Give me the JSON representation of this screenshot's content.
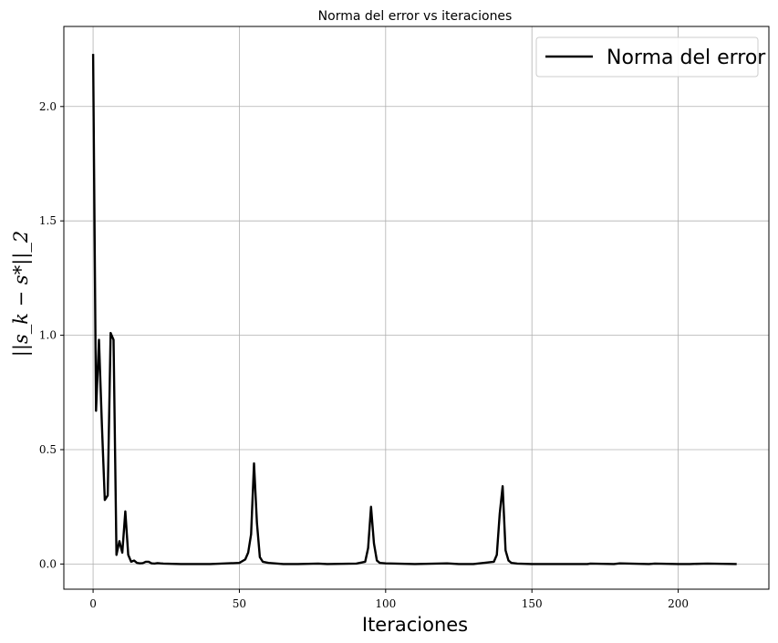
{
  "chart_data": {
    "type": "line",
    "title": "Norma del error vs iteraciones",
    "xlabel": "Iteraciones",
    "ylabel": "||s_k − s*||_2",
    "xlim": [
      -10,
      231
    ],
    "ylim": [
      -0.11,
      2.35
    ],
    "xticks": [
      0,
      50,
      100,
      150,
      200
    ],
    "yticks": [
      0.0,
      0.5,
      1.0,
      1.5,
      2.0
    ],
    "xtick_labels": [
      "0",
      "50",
      "100",
      "150",
      "200"
    ],
    "ytick_labels": [
      "0.0",
      "0.5",
      "1.0",
      "1.5",
      "2.0"
    ],
    "grid": true,
    "legend_position": "top-right",
    "colors": {
      "line": "#000000",
      "grid": "#b0b0b0"
    },
    "series": [
      {
        "name": "Norma del error",
        "x": [
          0,
          1,
          2,
          3,
          4,
          5,
          6,
          7,
          8,
          9,
          10,
          11,
          12,
          13,
          14,
          15,
          16,
          17,
          18,
          19,
          20,
          21,
          22,
          23,
          24,
          30,
          40,
          50,
          52,
          53,
          54,
          55,
          56,
          57,
          58,
          60,
          65,
          70,
          77,
          80,
          90,
          93,
          94,
          95,
          96,
          97,
          98,
          100,
          110,
          121,
          125,
          130,
          137,
          138,
          139,
          140,
          141,
          142,
          143,
          145,
          150,
          160,
          169,
          170,
          178,
          180,
          190,
          192,
          200,
          204,
          210,
          220
        ],
        "y": [
          2.23,
          0.67,
          0.98,
          0.61,
          0.28,
          0.3,
          1.01,
          0.98,
          0.04,
          0.1,
          0.05,
          0.23,
          0.04,
          0.01,
          0.015,
          0.005,
          0.003,
          0.004,
          0.01,
          0.01,
          0.003,
          0.002,
          0.004,
          0.003,
          0.002,
          0.0,
          0.0,
          0.005,
          0.02,
          0.05,
          0.13,
          0.44,
          0.18,
          0.03,
          0.01,
          0.005,
          0.0,
          0.0,
          0.002,
          0.0,
          0.002,
          0.01,
          0.07,
          0.25,
          0.09,
          0.015,
          0.005,
          0.003,
          0.0,
          0.003,
          0.0,
          0.0,
          0.01,
          0.04,
          0.22,
          0.34,
          0.06,
          0.015,
          0.005,
          0.002,
          0.0,
          0.0,
          0.0,
          0.002,
          0.0,
          0.003,
          0.0,
          0.002,
          0.0,
          0.0,
          0.002,
          0.0
        ]
      }
    ]
  }
}
